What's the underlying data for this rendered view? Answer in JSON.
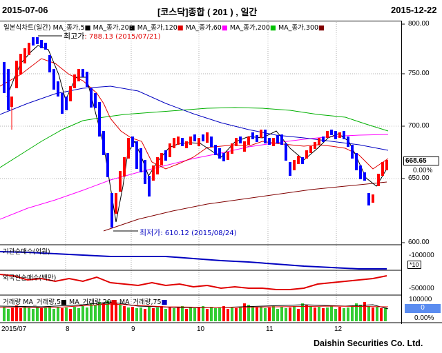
{
  "header": {
    "start_date": "2015-07-06",
    "title": "[코스닥]종합 ( 201 ) , 일간",
    "end_date": "2015-12-22"
  },
  "price_panel": {
    "legend_title": "일본식차트(일간)",
    "legend_items": [
      {
        "label": "MA_종가,5",
        "color": "#000000"
      },
      {
        "label": "MA_종가,20",
        "color": "#e00000"
      },
      {
        "label": "MA_종가,120",
        "color": "#ff00ff"
      },
      {
        "label": "MA_종가,60",
        "color": "#00c000"
      },
      {
        "label": "MA_종가,200",
        "color": "#0000c0"
      },
      {
        "label": "MA_종가,300",
        "color": "#800000"
      }
    ],
    "y_ticks": [
      "800.00",
      "750.00",
      "700.00",
      "650.00",
      "600.00"
    ],
    "current_price": "668.65",
    "current_change": "0.00%",
    "high_annotation": {
      "label": "최고가",
      "value": ": 788.13 (2015/07/21)"
    },
    "low_annotation": {
      "label": "최저가",
      "value": ": 610.12 (2015/08/24)"
    }
  },
  "indicator_1": {
    "label": "기관순매수(억원)",
    "tick": "-100000",
    "multiplier": "*10"
  },
  "indicator_2": {
    "label": "외국인순매수(백만)",
    "tick": "-500000"
  },
  "volume_panel": {
    "legend_title": "거래량",
    "legend_items": [
      {
        "label": "MA_거래량,5",
        "color": "#000000"
      },
      {
        "label": "MA_거래량,20",
        "color": "#e00000"
      },
      {
        "label": "MA_거래량,75",
        "color": "#0000c0"
      }
    ],
    "tick": "100000",
    "current_value": "0",
    "current_change": "0.00%"
  },
  "x_axis": {
    "labels": [
      "2015/07",
      "8",
      "9",
      "10",
      "11",
      "12"
    ]
  },
  "footer": {
    "brand": "Daishin Securities Co. Ltd."
  },
  "colors": {
    "up_candle": "#ff0000",
    "down_candle": "#0000ff",
    "volume_up": "#ff0000",
    "volume_down": "#33cc33",
    "current_box": "#5a8cf0",
    "ma300": "#800000"
  }
}
